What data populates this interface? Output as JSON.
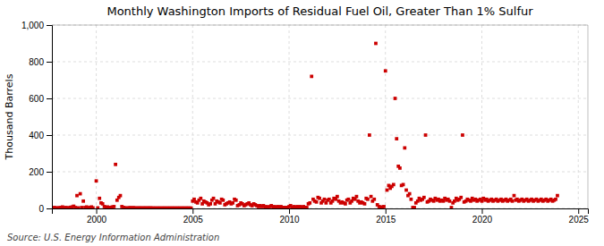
{
  "chart_data": {
    "type": "scatter",
    "title": "Monthly Washington Imports of Residual Fuel Oil, Greater Than 1% Sulfur",
    "ylabel": "Thousand Barrels",
    "source": "Source: U.S. Energy Information Administration",
    "color": "#cc0000",
    "marker": "square",
    "grid": true,
    "xlim": [
      1997.7,
      2025.5
    ],
    "ylim": [
      0,
      1000
    ],
    "xticks": [
      2000,
      2005,
      2010,
      2015,
      2020,
      2025
    ],
    "yticks": [
      0,
      200,
      400,
      600,
      800,
      {
        "value": 1000,
        "label": "1,000"
      }
    ],
    "x": [
      1997.83,
      1997.92,
      1998.0,
      1998.08,
      1998.17,
      1998.25,
      1998.33,
      1998.42,
      1998.5,
      1998.58,
      1998.67,
      1998.75,
      1998.83,
      1998.92,
      1999.0,
      1999.08,
      1999.17,
      1999.25,
      1999.33,
      1999.42,
      1999.5,
      1999.58,
      1999.67,
      1999.75,
      1999.83,
      2000.0,
      2000.08,
      2000.17,
      2000.25,
      2000.33,
      2000.42,
      2000.5,
      2000.58,
      2000.67,
      2000.75,
      2000.83,
      2000.92,
      2001.0,
      2001.08,
      2001.17,
      2001.25,
      2001.33,
      2001.42,
      2001.5,
      2001.58,
      2001.67,
      2001.75,
      2001.83,
      2001.92,
      2002.0,
      2002.08,
      2002.17,
      2002.25,
      2002.33,
      2002.42,
      2002.5,
      2002.58,
      2002.67,
      2002.75,
      2002.83,
      2002.92,
      2003.0,
      2003.08,
      2003.17,
      2003.25,
      2003.33,
      2003.42,
      2003.5,
      2003.58,
      2003.67,
      2003.75,
      2003.83,
      2003.92,
      2004.0,
      2004.08,
      2004.17,
      2004.25,
      2004.33,
      2004.42,
      2004.5,
      2004.58,
      2004.67,
      2004.75,
      2004.83,
      2004.92,
      2005.0,
      2005.08,
      2005.17,
      2005.25,
      2005.33,
      2005.42,
      2005.5,
      2005.58,
      2005.67,
      2005.75,
      2005.83,
      2005.92,
      2006.0,
      2006.08,
      2006.17,
      2006.25,
      2006.33,
      2006.42,
      2006.5,
      2006.58,
      2006.67,
      2006.75,
      2006.83,
      2006.92,
      2007.0,
      2007.08,
      2007.17,
      2007.25,
      2007.33,
      2007.42,
      2007.5,
      2007.58,
      2007.67,
      2007.75,
      2007.83,
      2007.92,
      2008.0,
      2008.08,
      2008.17,
      2008.25,
      2008.33,
      2008.42,
      2008.5,
      2008.58,
      2008.67,
      2008.75,
      2008.83,
      2008.92,
      2009.0,
      2009.08,
      2009.17,
      2009.25,
      2009.33,
      2009.42,
      2009.5,
      2009.58,
      2009.67,
      2009.75,
      2009.83,
      2009.92,
      2010.0,
      2010.08,
      2010.17,
      2010.25,
      2010.33,
      2010.42,
      2010.5,
      2010.58,
      2010.67,
      2010.75,
      2010.83,
      2010.92,
      2011.0,
      2011.08,
      2011.17,
      2011.25,
      2011.33,
      2011.42,
      2011.5,
      2011.58,
      2011.67,
      2011.75,
      2011.83,
      2011.92,
      2012.0,
      2012.08,
      2012.17,
      2012.25,
      2012.33,
      2012.42,
      2012.5,
      2012.58,
      2012.67,
      2012.75,
      2012.83,
      2012.92,
      2013.0,
      2013.08,
      2013.17,
      2013.25,
      2013.33,
      2013.42,
      2013.5,
      2013.58,
      2013.67,
      2013.75,
      2013.83,
      2013.92,
      2014.0,
      2014.08,
      2014.17,
      2014.25,
      2014.33,
      2014.42,
      2014.5,
      2014.58,
      2014.67,
      2014.75,
      2014.83,
      2014.92,
      2015.0,
      2015.08,
      2015.17,
      2015.25,
      2015.33,
      2015.42,
      2015.5,
      2015.58,
      2015.67,
      2015.75,
      2015.83,
      2015.92,
      2016.0,
      2016.08,
      2016.17,
      2016.25,
      2016.33,
      2016.42,
      2016.5,
      2016.58,
      2016.67,
      2016.75,
      2016.83,
      2016.92,
      2017.0,
      2017.08,
      2017.17,
      2017.25,
      2017.33,
      2017.42,
      2017.5,
      2017.58,
      2017.67,
      2017.75,
      2017.83,
      2017.92,
      2018.0,
      2018.08,
      2018.17,
      2018.25,
      2018.33,
      2018.42,
      2018.5,
      2018.58,
      2018.67,
      2018.75,
      2018.83,
      2018.92,
      2019.0,
      2019.08,
      2019.17,
      2019.25,
      2019.33,
      2019.42,
      2019.5,
      2019.58,
      2019.67,
      2019.75,
      2019.83,
      2019.92,
      2020.0,
      2020.08,
      2020.17,
      2020.25,
      2020.33,
      2020.42,
      2020.5,
      2020.58,
      2020.67,
      2020.75,
      2020.83,
      2020.92,
      2021.0,
      2021.08,
      2021.17,
      2021.25,
      2021.33,
      2021.42,
      2021.5,
      2021.58,
      2021.67,
      2021.75,
      2021.83,
      2021.92,
      2022.0,
      2022.08,
      2022.17,
      2022.25,
      2022.33,
      2022.42,
      2022.5,
      2022.58,
      2022.67,
      2022.75,
      2022.83,
      2022.92,
      2023.0,
      2023.08,
      2023.17,
      2023.25,
      2023.33,
      2023.42,
      2023.5,
      2023.58,
      2023.67,
      2023.75,
      2023.83,
      2023.92
    ],
    "values": [
      5,
      3,
      2,
      4,
      5,
      8,
      3,
      5,
      2,
      4,
      6,
      8,
      12,
      5,
      70,
      3,
      80,
      5,
      40,
      5,
      8,
      3,
      5,
      8,
      3,
      150,
      3,
      55,
      30,
      25,
      10,
      5,
      8,
      3,
      5,
      8,
      10,
      240,
      45,
      60,
      70,
      10,
      5,
      3,
      2,
      3,
      4,
      3,
      4,
      3,
      2,
      3,
      2,
      3,
      2,
      3,
      2,
      3,
      2,
      3,
      2,
      2,
      2,
      2,
      2,
      2,
      2,
      2,
      2,
      2,
      2,
      2,
      2,
      2,
      2,
      2,
      2,
      2,
      2,
      2,
      2,
      2,
      2,
      2,
      2,
      40,
      50,
      35,
      30,
      45,
      55,
      25,
      40,
      35,
      30,
      20,
      25,
      45,
      55,
      25,
      40,
      35,
      30,
      50,
      45,
      20,
      25,
      30,
      35,
      25,
      30,
      50,
      45,
      15,
      20,
      30,
      25,
      15,
      20,
      25,
      30,
      20,
      15,
      25,
      20,
      15,
      10,
      15,
      10,
      15,
      5,
      10,
      5,
      10,
      15,
      5,
      10,
      5,
      10,
      5,
      10,
      5,
      5,
      5,
      5,
      10,
      15,
      5,
      10,
      5,
      10,
      5,
      10,
      5,
      10,
      5,
      5,
      25,
      30,
      720,
      50,
      40,
      35,
      60,
      55,
      30,
      40,
      50,
      30,
      45,
      50,
      30,
      40,
      55,
      50,
      65,
      40,
      30,
      35,
      30,
      25,
      45,
      50,
      30,
      40,
      55,
      50,
      65,
      40,
      30,
      35,
      30,
      25,
      55,
      50,
      400,
      65,
      40,
      50,
      900,
      20,
      10,
      5,
      8,
      10,
      750,
      100,
      125,
      110,
      120,
      130,
      600,
      380,
      230,
      220,
      125,
      130,
      330,
      100,
      70,
      80,
      50,
      5,
      5,
      30,
      40,
      55,
      45,
      50,
      60,
      400,
      35,
      40,
      50,
      45,
      40,
      55,
      45,
      50,
      40,
      45,
      40,
      55,
      45,
      50,
      40,
      5,
      30,
      40,
      55,
      45,
      50,
      60,
      400,
      35,
      40,
      50,
      45,
      40,
      55,
      45,
      50,
      40,
      45,
      50,
      40,
      55,
      45,
      50,
      40,
      45,
      50,
      40,
      45,
      50,
      40,
      45,
      50,
      40,
      45,
      50,
      40,
      45,
      50,
      40,
      70,
      45,
      50,
      40,
      45,
      50,
      40,
      45,
      50,
      40,
      45,
      50,
      40,
      45,
      50,
      40,
      45,
      50,
      40,
      45,
      50,
      40,
      45,
      50,
      40,
      45,
      50,
      70
    ]
  }
}
